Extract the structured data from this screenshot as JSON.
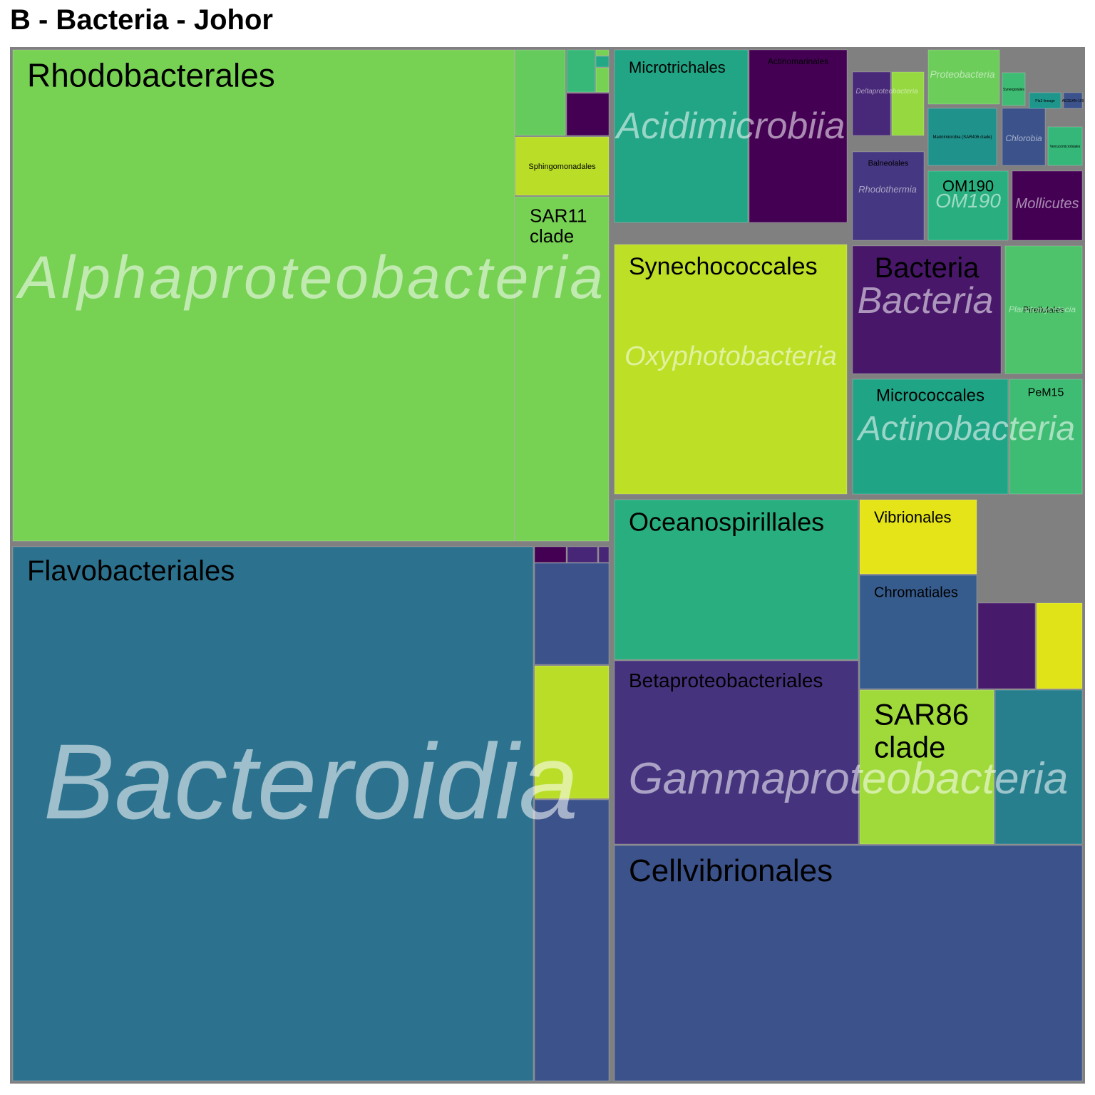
{
  "title": "B - Bacteria - Johor",
  "colors": {
    "border": "#808080",
    "class_text": "#ffffff",
    "order_text": "#000000"
  },
  "chart_data": {
    "type": "treemap",
    "title": "B - Bacteria - Johor",
    "groups": [
      {
        "class": "Alphaproteobacteria",
        "orders": [
          {
            "name": "Rhodobacterales",
            "value": 48.6,
            "color": "#77d153"
          },
          {
            "name": "SAR11 clade",
            "value": 6.9,
            "color": "#77d153"
          },
          {
            "name": "Sphingomonadales",
            "value": 1.4,
            "color": "#bade28"
          },
          {
            "name": "",
            "value": 1.5,
            "color": "#66cb5d"
          },
          {
            "name": "",
            "value": 0.7,
            "color": "#440154"
          },
          {
            "name": "",
            "value": 0.5,
            "color": "#37b878"
          },
          {
            "name": "",
            "value": 0.2,
            "color": "#77d153"
          },
          {
            "name": "",
            "value": 0.1,
            "color": "#22a884"
          },
          {
            "name": "",
            "value": 0.05,
            "color": "#77d153"
          }
        ]
      },
      {
        "class": "Bacteroidia",
        "orders": [
          {
            "name": "Flavobacteriales",
            "value": 43.5,
            "color": "#2c728e"
          },
          {
            "name": "",
            "value": 3.1,
            "color": "#3b528b"
          },
          {
            "name": "",
            "value": 3.1,
            "color": "#bade28"
          },
          {
            "name": "",
            "value": 3.1,
            "color": "#3b528b"
          },
          {
            "name": "",
            "value": 0.3,
            "color": "#440154"
          },
          {
            "name": "",
            "value": 0.2,
            "color": "#482677"
          },
          {
            "name": "",
            "value": 0.1,
            "color": "#482677"
          }
        ]
      },
      {
        "class": "Gammaproteobacteria",
        "orders": [
          {
            "name": "Cellvibrionales",
            "value": 12.6,
            "color": "#3b528b"
          },
          {
            "name": "Oceanospirillales",
            "value": 7.8,
            "color": "#29af7f"
          },
          {
            "name": "Betaproteobacteriales",
            "value": 8.9,
            "color": "#46337e"
          },
          {
            "name": "SAR86 clade",
            "value": 4.1,
            "color": "#9fda3a"
          },
          {
            "name": "Vibrionales",
            "value": 1.6,
            "color": "#e4e419"
          },
          {
            "name": "Chromatiales",
            "value": 2.6,
            "color": "#365c8d"
          },
          {
            "name": "",
            "value": 2.5,
            "color": "#277f8e"
          },
          {
            "name": "",
            "value": 0.9,
            "color": "#dfe318"
          },
          {
            "name": "",
            "value": 0.9,
            "color": "#481a6c"
          }
        ]
      },
      {
        "class": "Oxyphotobacteria",
        "orders": [
          {
            "name": "Synechococcales",
            "value": 7.4,
            "color": "#bddf26"
          }
        ]
      },
      {
        "class": "Acidimicrobiia",
        "orders": [
          {
            "name": "Microtrichales",
            "value": 3.9,
            "color": "#21a585"
          },
          {
            "name": "Actinomarinales",
            "value": 3.0,
            "color": "#440154"
          }
        ]
      },
      {
        "class": "Bacteria",
        "orders": [
          {
            "name": "Bacteria",
            "value": 2.4,
            "color": "#481769"
          }
        ]
      },
      {
        "class": "Actinobacteria",
        "orders": [
          {
            "name": "Micrococcales",
            "value": 2.1,
            "color": "#20a486"
          },
          {
            "name": "PeM15",
            "value": 1.0,
            "color": "#3fbc73"
          }
        ]
      },
      {
        "class": "Planctomycetacia",
        "orders": [
          {
            "name": "Pirellulales",
            "value": 1.8,
            "color": "#4ec36b"
          }
        ]
      },
      {
        "class": "Rhodothermia",
        "orders": [
          {
            "name": "Balneolales",
            "value": 1.2,
            "color": "#453781"
          }
        ]
      },
      {
        "class": "OM190",
        "orders": [
          {
            "name": "OM190",
            "value": 0.7,
            "color": "#29af7f"
          }
        ]
      },
      {
        "class": "Mollicutes",
        "orders": [
          {
            "name": "Mollicutes",
            "value": 0.7,
            "color": "#440154"
          }
        ]
      },
      {
        "class": "Deltaproteobacteria",
        "orders": [
          {
            "name": "",
            "value": 0.5,
            "color": "#482878"
          },
          {
            "name": "",
            "value": 0.4,
            "color": "#95d840"
          }
        ]
      },
      {
        "class": "Proteobacteria",
        "orders": [
          {
            "name": "",
            "value": 0.5,
            "color": "#6ccd5a"
          }
        ]
      },
      {
        "class": "Chlorobia",
        "orders": [
          {
            "name": "",
            "value": 0.3,
            "color": "#3b528b"
          }
        ]
      },
      {
        "class": "",
        "orders": [
          {
            "name": "Marinimicrobia (SAR406 clade)",
            "value": 0.5,
            "color": "#20928c"
          },
          {
            "name": "Verrucomicrobiales",
            "value": 0.2,
            "color": "#35b779"
          },
          {
            "name": "Synergistales",
            "value": 0.1,
            "color": "#3fbc73"
          },
          {
            "name": "Pla3 lineage",
            "value": 0.1,
            "color": "#1f968b"
          },
          {
            "name": "AEGEAN-169",
            "value": 0.05,
            "color": "#3b528b"
          }
        ]
      }
    ]
  }
}
